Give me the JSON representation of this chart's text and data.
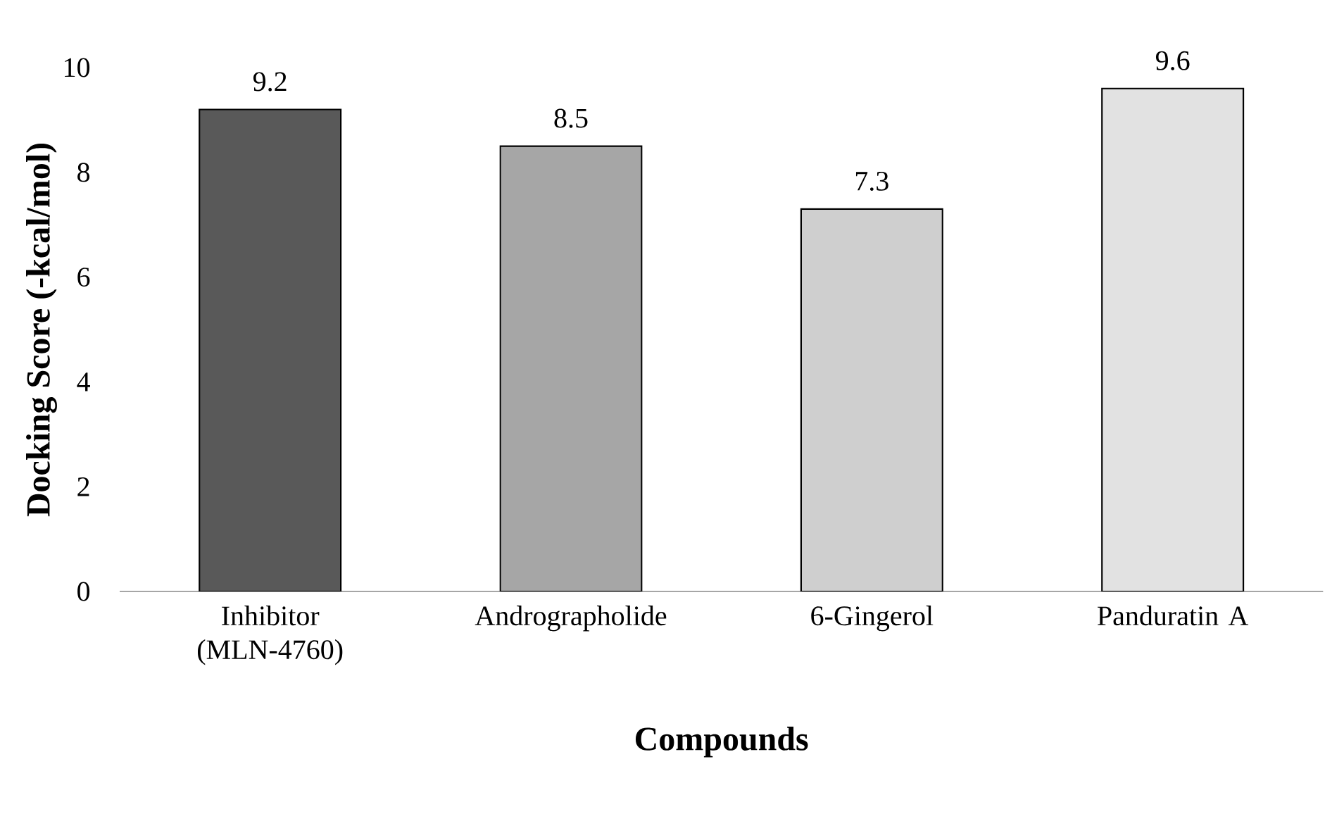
{
  "chart_data": {
    "type": "bar",
    "categories": [
      "Inhibitor (MLN-4760)",
      "Andrographolide",
      "6-Gingerol",
      "Panduratin A"
    ],
    "values": [
      9.2,
      8.5,
      7.3,
      9.6
    ],
    "colors": [
      "#595959",
      "#a6a6a6",
      "#cfcfcf",
      "#e2e2e2"
    ],
    "xlabel": "Compounds",
    "ylabel": "Docking Score (-kcal/mol)",
    "ylim": [
      0,
      10
    ],
    "yticks": [
      0,
      2,
      4,
      6,
      8,
      10
    ],
    "data_labels": true
  }
}
